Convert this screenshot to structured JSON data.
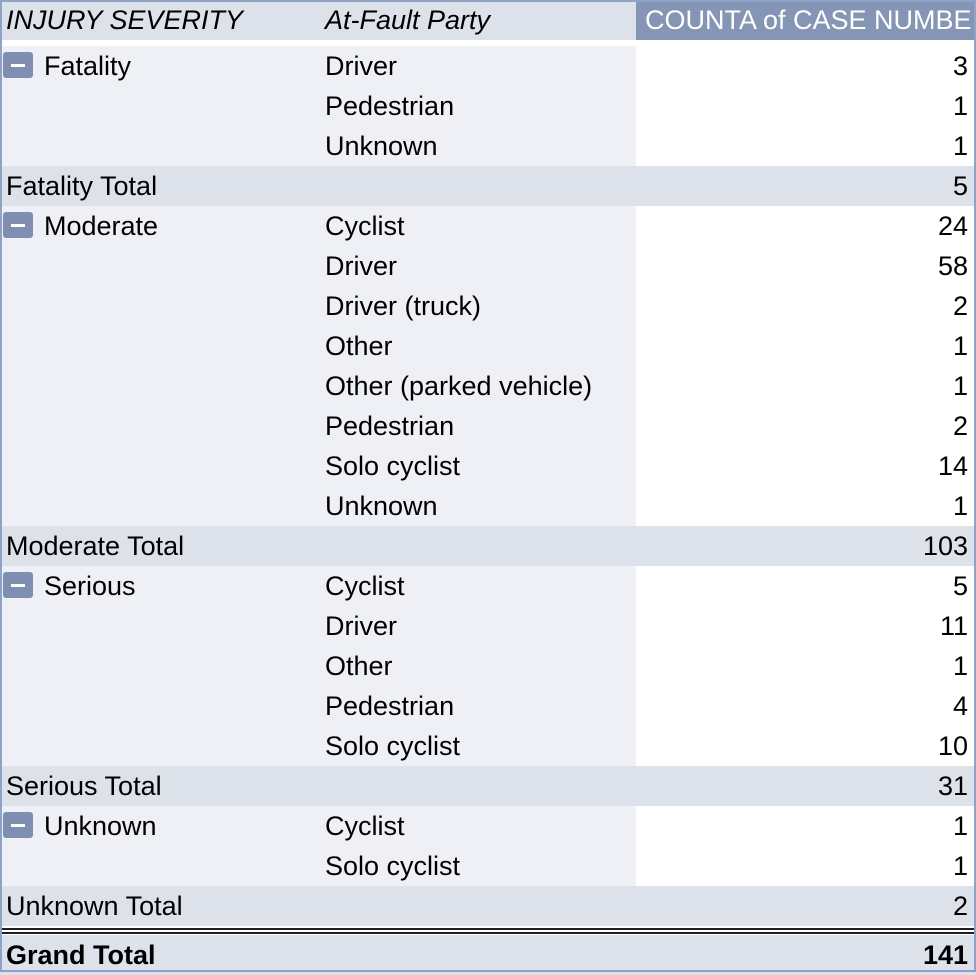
{
  "headers": {
    "col1": "INJURY SEVERITY",
    "col2": "At-Fault Party",
    "col3": "COUNTA of CASE NUMBE"
  },
  "groups": [
    {
      "name": "Fatality",
      "rows": [
        {
          "party": "Driver",
          "count": "3"
        },
        {
          "party": "Pedestrian",
          "count": "1"
        },
        {
          "party": "Unknown",
          "count": "1"
        }
      ],
      "total_label": "Fatality Total",
      "total": "5"
    },
    {
      "name": "Moderate",
      "rows": [
        {
          "party": "Cyclist",
          "count": "24"
        },
        {
          "party": "Driver",
          "count": "58"
        },
        {
          "party": "Driver (truck)",
          "count": "2"
        },
        {
          "party": "Other",
          "count": "1"
        },
        {
          "party": "Other (parked vehicle)",
          "count": "1"
        },
        {
          "party": "Pedestrian",
          "count": "2"
        },
        {
          "party": "Solo cyclist",
          "count": "14"
        },
        {
          "party": "Unknown",
          "count": "1"
        }
      ],
      "total_label": "Moderate Total",
      "total": "103"
    },
    {
      "name": "Serious",
      "rows": [
        {
          "party": "Cyclist",
          "count": "5"
        },
        {
          "party": "Driver",
          "count": "11"
        },
        {
          "party": "Other",
          "count": "1"
        },
        {
          "party": "Pedestrian",
          "count": "4"
        },
        {
          "party": "Solo cyclist",
          "count": "10"
        }
      ],
      "total_label": "Serious Total",
      "total": "31"
    },
    {
      "name": "Unknown",
      "rows": [
        {
          "party": "Cyclist",
          "count": "1"
        },
        {
          "party": "Solo cyclist",
          "count": "1"
        }
      ],
      "total_label": "Unknown Total",
      "total": "2"
    }
  ],
  "grand_total": {
    "label": "Grand Total",
    "value": "141"
  },
  "colors": {
    "header_value_bg": "#8595b6",
    "header_bg": "#dde1ea",
    "row_label_bg": "#eef0f6",
    "subtotal_bg": "#dde1ea",
    "collapse_button": "#7f8fb1",
    "border": "#8fa3c9"
  },
  "icons": {
    "collapse": "minus-collapse-icon"
  }
}
